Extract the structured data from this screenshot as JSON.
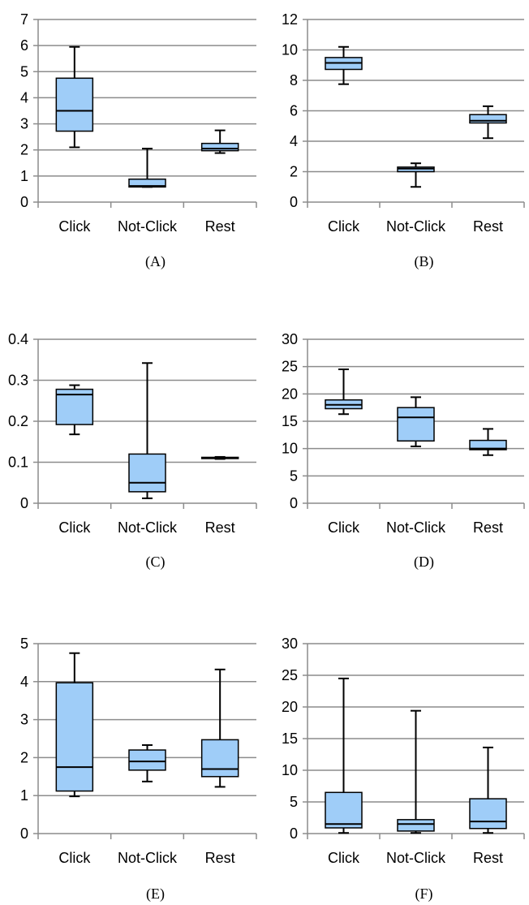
{
  "chart_data": [
    {
      "type": "box",
      "caption": "(A)",
      "categories": [
        "Click",
        "Not-Click",
        "Rest"
      ],
      "ylim": [
        0,
        7
      ],
      "yticks": [
        0,
        1,
        2,
        3,
        4,
        5,
        6,
        7
      ],
      "grid": true,
      "boxes": [
        {
          "min": 2.1,
          "q1": 2.72,
          "median": 3.5,
          "q3": 4.75,
          "max": 5.95
        },
        {
          "min": 0.58,
          "q1": 0.58,
          "median": 0.62,
          "q3": 0.88,
          "max": 2.05
        },
        {
          "min": 1.88,
          "q1": 1.97,
          "median": 2.05,
          "q3": 2.25,
          "max": 2.75
        }
      ]
    },
    {
      "type": "box",
      "caption": "(B)",
      "categories": [
        "Click",
        "Not-Click",
        "Rest"
      ],
      "ylim": [
        0,
        12
      ],
      "yticks": [
        0,
        2,
        4,
        6,
        8,
        10,
        12
      ],
      "grid": true,
      "boxes": [
        {
          "min": 7.75,
          "q1": 8.72,
          "median": 9.15,
          "q3": 9.5,
          "max": 10.2
        },
        {
          "min": 1.0,
          "q1": 2.0,
          "median": 2.2,
          "q3": 2.3,
          "max": 2.55
        },
        {
          "min": 4.2,
          "q1": 5.2,
          "median": 5.35,
          "q3": 5.75,
          "max": 6.3
        }
      ]
    },
    {
      "type": "box",
      "caption": "(C)",
      "categories": [
        "Click",
        "Not-Click",
        "Rest"
      ],
      "ylim": [
        0,
        0.4
      ],
      "yticks": [
        0,
        0.1,
        0.2,
        0.3,
        0.4
      ],
      "grid": true,
      "boxes": [
        {
          "min": 0.168,
          "q1": 0.192,
          "median": 0.265,
          "q3": 0.278,
          "max": 0.288
        },
        {
          "min": 0.012,
          "q1": 0.028,
          "median": 0.05,
          "q3": 0.12,
          "max": 0.342
        },
        {
          "min": 0.108,
          "q1": 0.109,
          "median": 0.11,
          "q3": 0.112,
          "max": 0.113
        }
      ]
    },
    {
      "type": "box",
      "caption": "(D)",
      "categories": [
        "Click",
        "Not-Click",
        "Rest"
      ],
      "ylim": [
        0,
        30
      ],
      "yticks": [
        0,
        5,
        10,
        15,
        20,
        25,
        30
      ],
      "grid": true,
      "boxes": [
        {
          "min": 16.3,
          "q1": 17.3,
          "median": 18.0,
          "q3": 18.9,
          "max": 24.5
        },
        {
          "min": 10.4,
          "q1": 11.4,
          "median": 15.7,
          "q3": 17.5,
          "max": 19.4
        },
        {
          "min": 8.8,
          "q1": 9.8,
          "median": 10.0,
          "q3": 11.5,
          "max": 13.6
        }
      ]
    },
    {
      "type": "box",
      "caption": "(E)",
      "categories": [
        "Click",
        "Not-Click",
        "Rest"
      ],
      "ylim": [
        0,
        5
      ],
      "yticks": [
        0,
        1,
        2,
        3,
        4,
        5
      ],
      "grid": true,
      "boxes": [
        {
          "min": 0.98,
          "q1": 1.12,
          "median": 1.75,
          "q3": 3.97,
          "max": 4.75
        },
        {
          "min": 1.37,
          "q1": 1.67,
          "median": 1.9,
          "q3": 2.2,
          "max": 2.33
        },
        {
          "min": 1.23,
          "q1": 1.5,
          "median": 1.7,
          "q3": 2.47,
          "max": 4.32
        }
      ]
    },
    {
      "type": "box",
      "caption": "(F)",
      "categories": [
        "Click",
        "Not-Click",
        "Rest"
      ],
      "ylim": [
        0,
        30
      ],
      "yticks": [
        0,
        5,
        10,
        15,
        20,
        25,
        30
      ],
      "grid": true,
      "boxes": [
        {
          "min": 0.1,
          "q1": 0.9,
          "median": 1.5,
          "q3": 6.5,
          "max": 24.5
        },
        {
          "min": 0.1,
          "q1": 0.4,
          "median": 1.5,
          "q3": 2.2,
          "max": 19.4
        },
        {
          "min": 0.1,
          "q1": 0.8,
          "median": 1.9,
          "q3": 5.5,
          "max": 13.6
        }
      ]
    }
  ],
  "colors": {
    "box_fill": "#9fcdf8",
    "stroke": "#000000",
    "grid": "#8c8c8c",
    "axis": "#8c8c8c"
  }
}
